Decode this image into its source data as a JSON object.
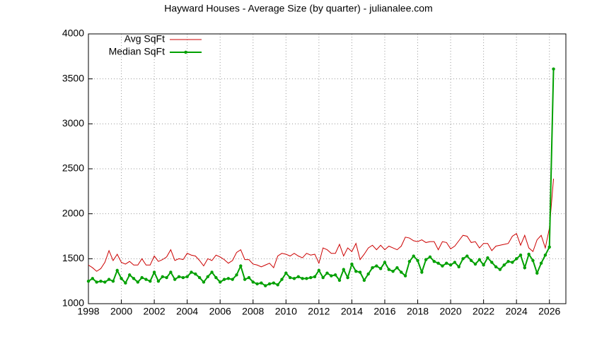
{
  "chart_data": {
    "type": "line",
    "title": "Hayward Houses - Average Size (by quarter) - julianalee.com",
    "x": [
      1998,
      1998.25,
      1998.5,
      1998.75,
      1999,
      1999.25,
      1999.5,
      1999.75,
      2000,
      2000.25,
      2000.5,
      2000.75,
      2001,
      2001.25,
      2001.5,
      2001.75,
      2002,
      2002.25,
      2002.5,
      2002.75,
      2003,
      2003.25,
      2003.5,
      2003.75,
      2004,
      2004.25,
      2004.5,
      2004.75,
      2005,
      2005.25,
      2005.5,
      2005.75,
      2006,
      2006.25,
      2006.5,
      2006.75,
      2007,
      2007.25,
      2007.5,
      2007.75,
      2008,
      2008.25,
      2008.5,
      2008.75,
      2009,
      2009.25,
      2009.5,
      2009.75,
      2010,
      2010.25,
      2010.5,
      2010.75,
      2011,
      2011.25,
      2011.5,
      2011.75,
      2012,
      2012.25,
      2012.5,
      2012.75,
      2013,
      2013.25,
      2013.5,
      2013.75,
      2014,
      2014.25,
      2014.5,
      2014.75,
      2015,
      2015.25,
      2015.5,
      2015.75,
      2016,
      2016.25,
      2016.5,
      2016.75,
      2017,
      2017.25,
      2017.5,
      2017.75,
      2018,
      2018.25,
      2018.5,
      2018.75,
      2019,
      2019.25,
      2019.5,
      2019.75,
      2020,
      2020.25,
      2020.5,
      2020.75,
      2021,
      2021.25,
      2021.5,
      2021.75,
      2022,
      2022.25,
      2022.5,
      2022.75,
      2023,
      2023.25,
      2023.5,
      2023.75,
      2024,
      2024.25,
      2024.5,
      2024.75,
      2025,
      2025.25,
      2025.5,
      2025.75,
      2026,
      2026.25
    ],
    "series": [
      {
        "name": "Avg SqFt",
        "color": "#cc0000",
        "markers": false,
        "values": [
          1430,
          1400,
          1360,
          1390,
          1460,
          1590,
          1480,
          1550,
          1460,
          1440,
          1470,
          1430,
          1430,
          1500,
          1430,
          1430,
          1530,
          1470,
          1490,
          1520,
          1600,
          1480,
          1500,
          1490,
          1560,
          1540,
          1530,
          1480,
          1420,
          1500,
          1480,
          1540,
          1520,
          1490,
          1450,
          1480,
          1570,
          1600,
          1490,
          1490,
          1440,
          1430,
          1410,
          1430,
          1450,
          1400,
          1530,
          1560,
          1550,
          1530,
          1560,
          1530,
          1510,
          1560,
          1540,
          1550,
          1450,
          1620,
          1600,
          1560,
          1560,
          1660,
          1530,
          1620,
          1580,
          1670,
          1490,
          1550,
          1620,
          1650,
          1600,
          1650,
          1600,
          1640,
          1620,
          1600,
          1640,
          1740,
          1730,
          1700,
          1690,
          1710,
          1680,
          1690,
          1690,
          1600,
          1690,
          1680,
          1610,
          1640,
          1700,
          1760,
          1750,
          1680,
          1690,
          1620,
          1670,
          1670,
          1590,
          1640,
          1650,
          1660,
          1670,
          1750,
          1780,
          1650,
          1760,
          1620,
          1580,
          1710,
          1760,
          1620,
          1840,
          2390
        ]
      },
      {
        "name": "Median SqFt",
        "color": "#00a000",
        "markers": true,
        "values": [
          1250,
          1280,
          1240,
          1250,
          1240,
          1270,
          1250,
          1370,
          1280,
          1230,
          1320,
          1280,
          1240,
          1290,
          1270,
          1250,
          1350,
          1250,
          1300,
          1290,
          1350,
          1270,
          1300,
          1290,
          1300,
          1350,
          1330,
          1290,
          1240,
          1300,
          1350,
          1290,
          1240,
          1270,
          1280,
          1270,
          1320,
          1420,
          1270,
          1290,
          1240,
          1220,
          1230,
          1200,
          1220,
          1230,
          1210,
          1270,
          1340,
          1290,
          1280,
          1300,
          1280,
          1280,
          1290,
          1300,
          1370,
          1290,
          1340,
          1310,
          1320,
          1260,
          1380,
          1290,
          1440,
          1360,
          1350,
          1260,
          1330,
          1400,
          1420,
          1390,
          1460,
          1380,
          1360,
          1400,
          1350,
          1310,
          1470,
          1530,
          1480,
          1350,
          1490,
          1520,
          1470,
          1450,
          1420,
          1450,
          1430,
          1460,
          1410,
          1500,
          1530,
          1480,
          1440,
          1490,
          1430,
          1510,
          1460,
          1410,
          1380,
          1430,
          1470,
          1460,
          1500,
          1540,
          1400,
          1550,
          1480,
          1340,
          1450,
          1540,
          1630,
          3610
        ]
      }
    ],
    "xlim": [
      1998,
      2027
    ],
    "ylim": [
      1000,
      4000
    ],
    "xticks": [
      1998,
      2000,
      2002,
      2004,
      2006,
      2008,
      2010,
      2012,
      2014,
      2016,
      2018,
      2020,
      2022,
      2024,
      2026
    ],
    "yticks": [
      1000,
      1500,
      2000,
      2500,
      3000,
      3500,
      4000
    ],
    "grid": true
  }
}
